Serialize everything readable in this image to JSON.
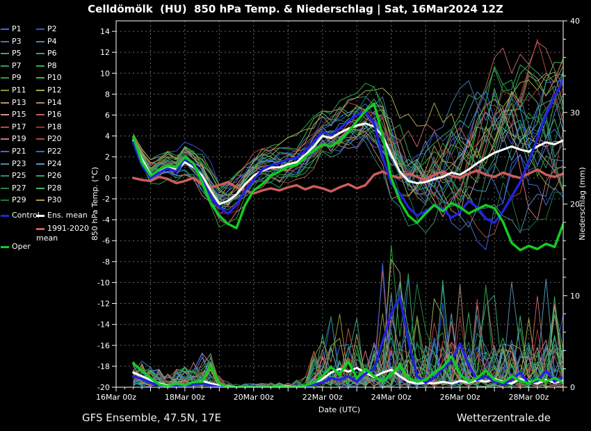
{
  "title": "Celldömölk  (HU)  850 hPa Temp. & Niederschlag | Sat, 16Mar2024 12Z",
  "footer": {
    "left": "GFS Ensemble, 47.5N, 17E",
    "right": "Wetterzentrale.de"
  },
  "legend": {
    "specials": [
      {
        "label": "Control",
        "color": "#2222dd",
        "column": 0,
        "y": 310
      },
      {
        "label": "Ens. mean",
        "color": "#ffffff",
        "column": 1,
        "y": 310
      },
      {
        "label": "1991-2020\nmean",
        "color": "#cd5c5c",
        "column": 1,
        "y": 329
      },
      {
        "label": "Oper",
        "color": "#11cc22",
        "column": 0,
        "y": 355
      }
    ]
  },
  "chart_data": {
    "type": "line",
    "title": "Celldömölk (HU) 850 hPa Temp. & Niederschlag | Sat, 16Mar2024 12Z",
    "xlabel": "Date (UTC)",
    "ylabel_left": "850 hPa Temp. (°C)",
    "ylabel_right": "Niederschlag (mm)",
    "x_axis": {
      "total_hours": 312,
      "tick_hours": [
        0,
        48,
        96,
        144,
        192,
        240,
        288
      ],
      "tick_labels": [
        "16Mar 00z",
        "18Mar 00z",
        "20Mar 00z",
        "22Mar 00z",
        "24Mar 00z",
        "26Mar 00z",
        "28Mar 00z"
      ],
      "gridline_every_hours": 24,
      "minor_tick_hours": 6
    },
    "y_left": {
      "min": -20,
      "max": 15,
      "tick_step": 2,
      "tick_labels": [
        14,
        12,
        10,
        8,
        6,
        4,
        2,
        0,
        -2,
        -4,
        -6,
        -8,
        -10,
        -12,
        -14,
        -16,
        -18,
        -20
      ]
    },
    "y_right": {
      "min": 0,
      "max": 40,
      "tick_step": 10,
      "minor_step": 2,
      "tick_labels": [
        40,
        30,
        20,
        10,
        0
      ]
    },
    "time_hours": [
      12,
      18,
      24,
      30,
      36,
      42,
      48,
      54,
      60,
      66,
      72,
      78,
      84,
      90,
      96,
      102,
      108,
      114,
      120,
      126,
      132,
      138,
      144,
      150,
      156,
      162,
      168,
      174,
      180,
      186,
      192,
      198,
      204,
      210,
      216,
      222,
      228,
      234,
      240,
      246,
      252,
      258,
      264,
      270,
      276,
      282,
      288,
      294,
      300,
      306,
      312
    ],
    "series": {
      "ens_mean": {
        "label": "Ens. mean",
        "color": "#ffffff",
        "temp": [
          3.6,
          1.8,
          0.3,
          0.6,
          1.0,
          0.8,
          1.5,
          1.0,
          0.2,
          -1.2,
          -2.5,
          -2.2,
          -1.6,
          -0.6,
          0.2,
          0.7,
          1.0,
          1.0,
          1.3,
          1.5,
          2.2,
          3.0,
          4.0,
          3.8,
          4.3,
          4.7,
          5.0,
          5.2,
          4.9,
          4.0,
          2.2,
          0.6,
          -0.3,
          -0.5,
          -0.4,
          -0.1,
          0.1,
          0.5,
          0.3,
          0.8,
          1.4,
          1.9,
          2.4,
          2.7,
          3.0,
          2.7,
          2.5,
          3.0,
          3.4,
          3.2,
          3.6
        ],
        "precip": [
          1.6,
          1.2,
          0.8,
          0.4,
          0.2,
          0.3,
          0.2,
          0.5,
          0.7,
          0.4,
          0.2,
          0.1,
          0.0,
          0.0,
          0.0,
          0.0,
          0.0,
          0.1,
          0.1,
          0.0,
          0.2,
          0.4,
          0.9,
          1.6,
          2.0,
          1.7,
          2.1,
          1.6,
          1.1,
          1.6,
          1.9,
          1.2,
          0.6,
          0.4,
          0.5,
          0.4,
          0.6,
          0.4,
          0.7,
          0.5,
          0.8,
          0.6,
          0.9,
          0.6,
          0.4,
          0.9,
          0.6,
          0.4,
          0.8,
          0.5,
          0.7
        ]
      },
      "control": {
        "label": "Control",
        "color": "#2222dd",
        "temp": [
          3.4,
          1.2,
          0.0,
          0.5,
          0.9,
          0.6,
          1.9,
          1.2,
          -0.2,
          -1.8,
          -2.8,
          -3.4,
          -2.6,
          -1.2,
          -0.2,
          0.8,
          1.2,
          1.4,
          1.8,
          1.9,
          2.6,
          3.5,
          4.4,
          4.1,
          4.7,
          5.4,
          6.0,
          6.3,
          5.2,
          2.0,
          -0.5,
          -1.5,
          -2.8,
          -3.6,
          -3.2,
          -2.6,
          -3.0,
          -3.8,
          -3.3,
          -2.2,
          -2.8,
          -3.9,
          -4.3,
          -3.2,
          -1.8,
          -0.4,
          1.6,
          3.8,
          6.0,
          7.8,
          9.3
        ],
        "precip": [
          1.2,
          0.9,
          0.5,
          0.2,
          0.1,
          0.2,
          0.1,
          0.3,
          0.4,
          0.2,
          0.0,
          0.0,
          0.0,
          0.0,
          0.0,
          0.0,
          0.0,
          0.0,
          0.0,
          0.0,
          0.1,
          0.3,
          0.5,
          1.0,
          0.8,
          1.2,
          0.6,
          1.5,
          2.0,
          5.0,
          8.0,
          9.9,
          5.0,
          1.2,
          0.5,
          1.0,
          2.0,
          2.8,
          4.8,
          2.4,
          0.8,
          1.2,
          0.6,
          0.3,
          0.8,
          1.6,
          0.4,
          0.7,
          1.8,
          0.6,
          1.1
        ]
      },
      "oper": {
        "label": "Oper",
        "color": "#11cc22",
        "temp": [
          3.9,
          1.5,
          0.2,
          0.8,
          1.2,
          1.0,
          2.0,
          1.4,
          -0.4,
          -2.4,
          -3.6,
          -4.4,
          -4.8,
          -2.6,
          -1.2,
          -0.6,
          0.2,
          0.6,
          1.1,
          1.2,
          2.0,
          2.6,
          3.2,
          3.0,
          3.6,
          4.4,
          5.4,
          6.4,
          7.1,
          4.0,
          0.0,
          -2.2,
          -3.6,
          -4.3,
          -3.4,
          -2.6,
          -3.2,
          -2.4,
          -2.8,
          -3.4,
          -3.0,
          -2.6,
          -2.9,
          -4.2,
          -6.2,
          -6.9,
          -6.5,
          -6.8,
          -6.3,
          -6.6,
          -4.4
        ],
        "precip": [
          2.6,
          1.8,
          1.0,
          0.3,
          0.1,
          0.4,
          0.2,
          0.6,
          0.6,
          2.4,
          0.4,
          0.0,
          0.0,
          0.0,
          0.0,
          0.0,
          0.0,
          0.1,
          0.0,
          0.0,
          0.2,
          0.5,
          1.2,
          2.2,
          1.4,
          2.8,
          1.0,
          2.0,
          1.2,
          0.6,
          1.4,
          2.4,
          1.0,
          0.6,
          0.8,
          1.6,
          2.2,
          3.4,
          1.4,
          0.6,
          1.0,
          1.8,
          0.8,
          0.5,
          1.2,
          0.7,
          0.4,
          0.9,
          0.6,
          1.0,
          0.5
        ]
      },
      "climate_mean": {
        "label": "1991-2020 mean",
        "color": "#cd5c5c",
        "temp": [
          0.0,
          -0.2,
          -0.3,
          0.1,
          -0.1,
          -0.5,
          -0.3,
          0.0,
          -0.6,
          -0.9,
          -0.7,
          -0.4,
          -0.9,
          -1.2,
          -1.5,
          -1.2,
          -1.0,
          -1.2,
          -0.9,
          -0.7,
          -1.1,
          -0.8,
          -1.0,
          -1.3,
          -0.9,
          -0.6,
          -1.0,
          -0.7,
          0.3,
          0.6,
          0.2,
          0.0,
          0.4,
          0.1,
          -0.2,
          0.3,
          0.6,
          0.2,
          0.0,
          0.4,
          0.7,
          0.3,
          0.1,
          0.5,
          0.2,
          0.0,
          0.4,
          0.8,
          0.3,
          0.1,
          0.4
        ]
      }
    },
    "members": {
      "count": 30,
      "labels": [
        "P1",
        "P2",
        "P3",
        "P4",
        "P5",
        "P6",
        "P7",
        "P8",
        "P9",
        "P10",
        "P11",
        "P12",
        "P13",
        "P14",
        "P15",
        "P16",
        "P17",
        "P18",
        "P19",
        "P20",
        "P21",
        "P22",
        "P23",
        "P24",
        "P25",
        "P26",
        "P27",
        "P28",
        "P29",
        "P30"
      ],
      "colors": [
        "#4169e1",
        "#3355dd",
        "#4477aa",
        "#4488bb",
        "#33a0a0",
        "#33a080",
        "#2fa060",
        "#30b050",
        "#28a038",
        "#40b060",
        "#909030",
        "#a8a848",
        "#b89868",
        "#a88878",
        "#d89090",
        "#c06060",
        "#b05040",
        "#993333",
        "#cc7777",
        "#bb4444",
        "#4466dd",
        "#3366ee",
        "#5588aa",
        "#5599bb",
        "#2f9070",
        "#33aa55",
        "#228844",
        "#44bb66",
        "#1f7733",
        "#b0a055"
      ],
      "temp_spread": [
        0.5,
        0.7,
        0.9,
        1.0,
        1.1,
        1.1,
        1.2,
        1.3,
        1.5,
        1.7,
        1.8,
        1.8,
        1.7,
        1.6,
        1.5,
        1.5,
        1.5,
        1.6,
        1.6,
        1.7,
        1.7,
        1.8,
        1.8,
        1.9,
        2.0,
        2.1,
        2.2,
        2.4,
        2.8,
        3.2,
        3.5,
        3.8,
        4.0,
        4.2,
        4.5,
        4.8,
        5.0,
        5.2,
        5.5,
        5.6,
        5.8,
        5.9,
        6.0,
        6.1,
        6.2,
        6.4,
        6.5,
        6.7,
        6.8,
        6.9,
        7.0
      ],
      "precip_max": [
        3,
        3,
        2.5,
        2,
        1.5,
        2,
        2.5,
        3,
        4,
        4,
        1.5,
        0.6,
        0.5,
        0.5,
        0.5,
        0.5,
        0.5,
        0.6,
        0.6,
        0.8,
        1.5,
        4,
        6,
        8,
        8,
        9,
        12,
        14,
        16,
        16,
        16,
        15,
        14,
        12,
        14,
        12,
        12,
        14,
        12,
        10,
        10,
        14,
        12,
        10,
        12,
        10,
        8,
        10,
        12,
        10,
        9
      ],
      "seed": 42
    }
  },
  "colors": {
    "background": "#000000",
    "text": "#ffffff",
    "grid": "#6e6e6e",
    "axis": "#ffffff"
  }
}
